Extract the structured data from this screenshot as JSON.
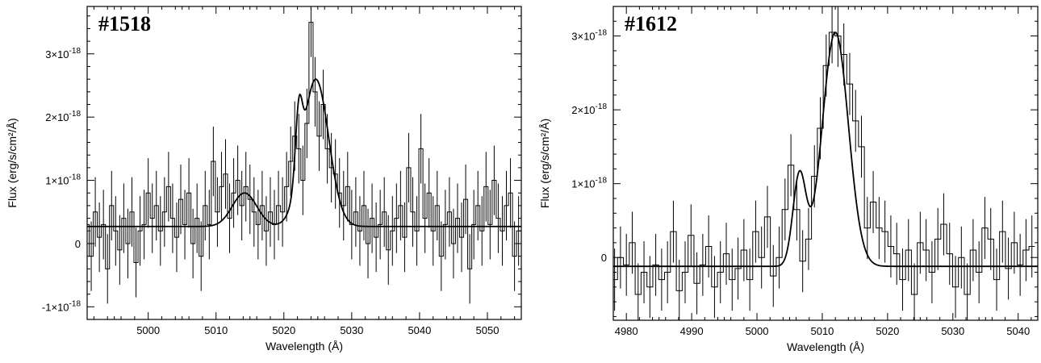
{
  "chart_data": [
    {
      "type": "line",
      "title": "#1518",
      "xlabel": "Wavelength (Å)",
      "ylabel": "Flux (erg/s/cm²/Å)",
      "xlim": [
        4991,
        5055
      ],
      "ylim": [
        -1.2e-18,
        3.75e-18
      ],
      "xticks": [
        5000,
        5010,
        5020,
        5030,
        5040,
        5050
      ],
      "yticks": [
        {
          "value": -1e-18,
          "label": "-1×10-18"
        },
        {
          "value": 0,
          "label": "0"
        },
        {
          "value": 1e-18,
          "label": "1×10-18"
        },
        {
          "value": 2e-18,
          "label": "2×10-18"
        },
        {
          "value": 3e-18,
          "label": "3×10-18"
        }
      ],
      "grid": false,
      "data_step": 0.6,
      "spectrum": {
        "x": [
          4991.0,
          4991.6,
          4992.2,
          4992.8,
          4993.4,
          4994.0,
          4994.6,
          4995.2,
          4995.8,
          4996.4,
          4997.0,
          4997.6,
          4998.2,
          4998.8,
          4999.4,
          5000.0,
          5000.6,
          5001.2,
          5001.8,
          5002.4,
          5003.0,
          5003.6,
          5004.2,
          5004.8,
          5005.4,
          5006.0,
          5006.6,
          5007.2,
          5007.8,
          5008.4,
          5009.0,
          5009.6,
          5010.2,
          5010.8,
          5011.4,
          5012.0,
          5012.6,
          5013.2,
          5013.8,
          5014.4,
          5015.0,
          5015.6,
          5016.2,
          5016.8,
          5017.4,
          5018.0,
          5018.6,
          5019.2,
          5019.8,
          5020.4,
          5021.0,
          5021.6,
          5022.2,
          5022.8,
          5023.4,
          5024.0,
          5024.6,
          5025.2,
          5025.8,
          5026.4,
          5027.0,
          5027.6,
          5028.2,
          5028.8,
          5029.4,
          5030.0,
          5030.6,
          5031.2,
          5031.8,
          5032.4,
          5033.0,
          5033.6,
          5034.2,
          5034.8,
          5035.4,
          5036.0,
          5036.6,
          5037.2,
          5037.8,
          5038.4,
          5039.0,
          5039.6,
          5040.2,
          5040.8,
          5041.4,
          5042.0,
          5042.6,
          5043.2,
          5043.8,
          5044.4,
          5045.0,
          5045.6,
          5046.2,
          5046.8,
          5047.4,
          5048.0,
          5048.6,
          5049.2,
          5049.8,
          5050.4,
          5051.0,
          5051.6,
          5052.2,
          5052.8,
          5053.4,
          5054.0,
          5054.6
        ],
        "y": [
          3e-19,
          -2e-19,
          5e-19,
          1e-19,
          3e-19,
          -4e-19,
          6e-19,
          2e-19,
          -1e-19,
          4e-19,
          0.0,
          5e-19,
          -3e-19,
          2e-19,
          3e-19,
          8e-19,
          4e-19,
          6e-19,
          2e-19,
          5e-19,
          9e-19,
          4e-19,
          1e-19,
          7e-19,
          3e-19,
          8e-19,
          0.0,
          4e-19,
          -2e-19,
          6e-19,
          3e-19,
          1.3e-18,
          5e-19,
          9e-19,
          1.1e-18,
          4e-19,
          8e-19,
          1e-18,
          6e-19,
          9e-19,
          7e-19,
          5e-19,
          3e-19,
          6e-19,
          2e-19,
          5e-19,
          3e-19,
          6e-19,
          5e-19,
          9e-19,
          1.3e-18,
          1.7e-18,
          1.5e-18,
          1e-18,
          1.9e-18,
          3.5e-18,
          2.4e-18,
          1.7e-18,
          2.2e-18,
          1.5e-18,
          1.2e-18,
          1.1e-18,
          8e-19,
          6e-19,
          9e-19,
          3e-19,
          5e-19,
          2e-19,
          6e-19,
          0.0,
          4e-19,
          1e-19,
          3e-19,
          5e-19,
          -1e-19,
          2e-19,
          4e-19,
          6e-19,
          1e-19,
          1.2e-18,
          5e-19,
          2e-19,
          1.5e-18,
          4e-19,
          8e-19,
          2e-19,
          6e-19,
          -2e-19,
          3e-19,
          5e-19,
          0.0,
          4e-19,
          1e-19,
          7e-19,
          -4e-19,
          3e-19,
          6e-19,
          2e-19,
          9e-19,
          3e-19,
          1e-18,
          4e-19,
          2e-19,
          6e-19,
          8e-19,
          -2e-19,
          2e-19
        ],
        "err": 5.5e-19
      },
      "model": {
        "continuum": 2.7e-19,
        "components": [
          {
            "center": 5014.2,
            "amplitude": 5.3e-19,
            "sigma": 1.8
          },
          {
            "center": 5022.2,
            "amplitude": 1.05e-18,
            "sigma": 0.5
          },
          {
            "center": 5024.7,
            "amplitude": 2.33e-18,
            "sigma": 1.9
          }
        ]
      }
    },
    {
      "type": "line",
      "title": "#1612",
      "xlabel": "Wavelength (Å)",
      "ylabel": "Flux (erg/s/cm²/Å)",
      "xlim": [
        4978,
        5043
      ],
      "ylim": [
        -8.5e-19,
        3.4e-18
      ],
      "xticks": [
        4980,
        4990,
        5000,
        5010,
        5020,
        5030,
        5040
      ],
      "yticks": [
        {
          "value": 0,
          "label": "0"
        },
        {
          "value": 1e-18,
          "label": "1×10-18"
        },
        {
          "value": 2e-18,
          "label": "2×10-18"
        },
        {
          "value": 3e-18,
          "label": "3×10-18"
        }
      ],
      "grid": false,
      "data_step": 0.9,
      "spectrum": {
        "x": [
          4978.2,
          4979.1,
          4980.0,
          4980.9,
          4981.8,
          4982.7,
          4983.6,
          4984.5,
          4985.4,
          4986.3,
          4987.2,
          4988.1,
          4989.0,
          4989.9,
          4990.8,
          4991.7,
          4992.6,
          4993.5,
          4994.4,
          4995.3,
          4996.2,
          4997.1,
          4998.0,
          4998.9,
          4999.8,
          5000.7,
          5001.6,
          5002.5,
          5003.4,
          5004.3,
          5005.2,
          5006.1,
          5007.0,
          5007.9,
          5008.8,
          5009.7,
          5010.6,
          5011.5,
          5012.4,
          5013.3,
          5014.2,
          5015.1,
          5016.0,
          5016.9,
          5017.8,
          5018.7,
          5019.6,
          5020.5,
          5021.4,
          5022.3,
          5023.2,
          5024.1,
          5025.0,
          5025.9,
          5026.8,
          5027.7,
          5028.6,
          5029.5,
          5030.4,
          5031.3,
          5032.2,
          5033.1,
          5034.0,
          5034.9,
          5035.8,
          5036.7,
          5037.6,
          5038.5,
          5039.4,
          5040.3,
          5041.2,
          5042.1
        ],
        "y": [
          -3e-19,
          0.0,
          -1e-19,
          2e-19,
          -5e-19,
          -2e-19,
          -4e-19,
          -1e-19,
          -3e-19,
          -2e-19,
          3.5e-19,
          -4.5e-19,
          -2e-19,
          3e-19,
          -3.5e-19,
          -1e-19,
          1.5e-19,
          -4e-19,
          -2e-19,
          5e-20,
          -3e-19,
          -1.5e-19,
          1e-19,
          -3e-19,
          3.5e-19,
          0.0,
          5.5e-19,
          -2.5e-19,
          0.0,
          6.5e-19,
          1.25e-18,
          6.5e-19,
          -5e-20,
          2.5e-19,
          1.1e-18,
          1.75e-18,
          2.6e-18,
          3.05e-18,
          3e-18,
          2.75e-18,
          2.35e-18,
          1.85e-18,
          1.5e-18,
          4e-19,
          7.5e-19,
          4e-19,
          3.5e-19,
          1.5e-19,
          5e-20,
          -3e-19,
          1e-19,
          -5e-19,
          2e-19,
          1e-19,
          -2e-19,
          2.5e-19,
          4.5e-19,
          5e-20,
          -4e-19,
          0.0,
          -5e-19,
          1e-19,
          -2e-19,
          4e-19,
          2.5e-19,
          -3e-19,
          3.5e-19,
          -1.5e-19,
          2e-19,
          -1e-19,
          1e-19,
          1.5e-19
        ],
        "err": 4.2e-19
      },
      "model": {
        "continuum": -1.2e-19,
        "components": [
          {
            "center": 5006.5,
            "amplitude": 1.22e-18,
            "sigma": 1.0
          },
          {
            "center": 5012.0,
            "amplitude": 3.17e-18,
            "sigma": 2.0
          }
        ]
      }
    }
  ]
}
